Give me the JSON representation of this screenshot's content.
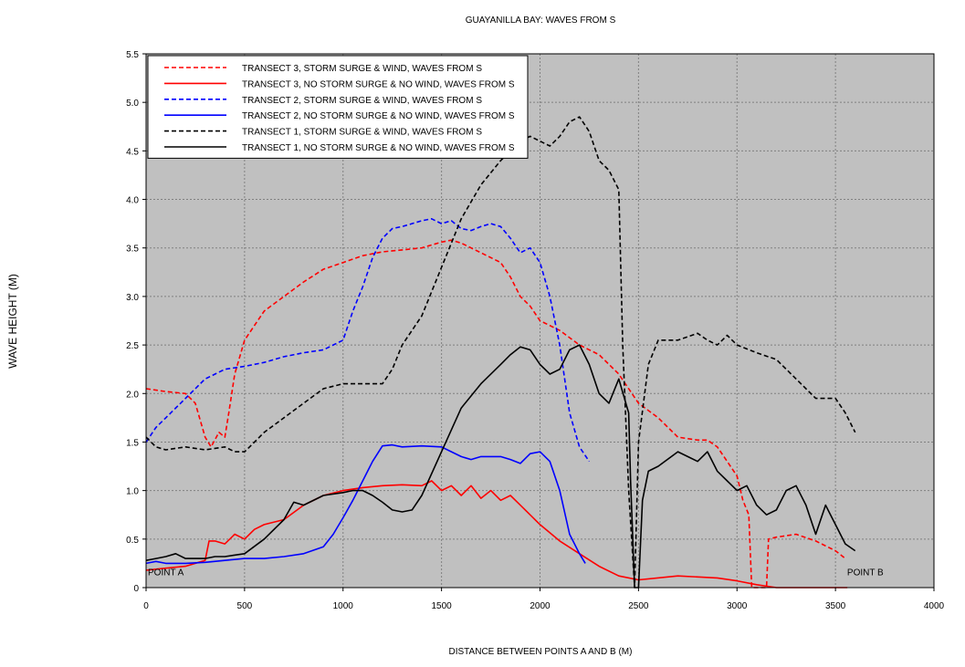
{
  "chart_data": {
    "type": "line",
    "title": "GUAYANILLA BAY: WAVES FROM S",
    "xlabel": "DISTANCE BETWEEN POINTS A AND B (M)",
    "ylabel": "WAVE HEIGHT (M)",
    "xlim": [
      0,
      4000
    ],
    "ylim": [
      0,
      5.5
    ],
    "xticks": [
      "0",
      "500",
      "1000",
      "1500",
      "2000",
      "2500",
      "3000",
      "3500",
      "4000"
    ],
    "yticks": [
      "0",
      "0.5",
      "1.0",
      "1.5",
      "2.0",
      "2.5",
      "3.0",
      "3.5",
      "4.0",
      "4.5",
      "5.0",
      "5.5"
    ],
    "grid": true,
    "legend_position": "top-left",
    "annotations": [
      {
        "text": "POINT A",
        "x": 0,
        "y": 0.1
      },
      {
        "text": "POINT B",
        "x": 3550,
        "y": 0.1
      }
    ],
    "colors": {
      "plot_background": "#c0c0c0",
      "grid": "#808080"
    },
    "series": [
      {
        "name": "TRANSECT 3, STORM SURGE & WIND, WAVES FROM S",
        "color": "#ff0000",
        "dash": true,
        "x": [
          0,
          100,
          200,
          250,
          300,
          330,
          370,
          400,
          420,
          450,
          500,
          600,
          700,
          800,
          900,
          1000,
          1100,
          1200,
          1300,
          1400,
          1500,
          1550,
          1600,
          1650,
          1700,
          1800,
          1850,
          1900,
          1950,
          2000,
          2100,
          2200,
          2300,
          2400,
          2500,
          2600,
          2700,
          2800,
          2850,
          2900,
          2950,
          3000,
          3030,
          3060,
          3075,
          3080,
          3150,
          3160,
          3200,
          3300,
          3400,
          3500,
          3550
        ],
        "y": [
          2.05,
          2.02,
          2.0,
          1.9,
          1.55,
          1.45,
          1.6,
          1.55,
          1.8,
          2.2,
          2.55,
          2.85,
          3.0,
          3.15,
          3.28,
          3.35,
          3.42,
          3.46,
          3.48,
          3.5,
          3.56,
          3.58,
          3.55,
          3.5,
          3.45,
          3.35,
          3.2,
          3.0,
          2.9,
          2.75,
          2.65,
          2.5,
          2.4,
          2.2,
          1.9,
          1.75,
          1.55,
          1.52,
          1.52,
          1.45,
          1.3,
          1.15,
          0.9,
          0.75,
          0.0,
          0.0,
          0.0,
          0.5,
          0.52,
          0.55,
          0.48,
          0.38,
          0.3
        ]
      },
      {
        "name": "TRANSECT 3, NO STORM SURGE & NO WIND, WAVES FROM S",
        "color": "#ff0000",
        "dash": false,
        "x": [
          0,
          100,
          200,
          300,
          320,
          350,
          400,
          450,
          500,
          550,
          600,
          700,
          800,
          900,
          1000,
          1100,
          1200,
          1300,
          1400,
          1450,
          1500,
          1550,
          1600,
          1650,
          1700,
          1750,
          1800,
          1850,
          1900,
          2000,
          2100,
          2200,
          2300,
          2400,
          2500,
          2700,
          2900,
          3000,
          3100,
          3200,
          3300,
          3400,
          3500,
          3560
        ],
        "y": [
          0.18,
          0.2,
          0.22,
          0.28,
          0.48,
          0.48,
          0.45,
          0.55,
          0.5,
          0.6,
          0.65,
          0.7,
          0.85,
          0.95,
          1.0,
          1.03,
          1.05,
          1.06,
          1.05,
          1.1,
          1.0,
          1.05,
          0.95,
          1.05,
          0.92,
          1.0,
          0.9,
          0.95,
          0.85,
          0.65,
          0.48,
          0.35,
          0.22,
          0.12,
          0.08,
          0.12,
          0.1,
          0.07,
          0.03,
          0.0,
          0.0,
          0.0,
          0.0,
          0.0
        ]
      },
      {
        "name": "TRANSECT 2, STORM SURGE & WIND, WAVES FROM S",
        "color": "#0000ff",
        "dash": true,
        "x": [
          0,
          50,
          100,
          200,
          300,
          400,
          500,
          600,
          700,
          800,
          900,
          1000,
          1050,
          1100,
          1150,
          1200,
          1250,
          1300,
          1400,
          1450,
          1500,
          1550,
          1600,
          1650,
          1700,
          1750,
          1800,
          1850,
          1900,
          1950,
          2000,
          2050,
          2100,
          2150,
          2200,
          2250
        ],
        "y": [
          1.5,
          1.65,
          1.75,
          1.95,
          2.15,
          2.25,
          2.28,
          2.32,
          2.38,
          2.42,
          2.45,
          2.55,
          2.85,
          3.1,
          3.4,
          3.6,
          3.7,
          3.72,
          3.78,
          3.8,
          3.75,
          3.78,
          3.7,
          3.68,
          3.72,
          3.75,
          3.72,
          3.6,
          3.45,
          3.5,
          3.35,
          3.0,
          2.5,
          1.8,
          1.45,
          1.3
        ]
      },
      {
        "name": "TRANSECT 2, NO STORM SURGE & NO WIND, WAVES FROM S",
        "color": "#0000ff",
        "dash": false,
        "x": [
          0,
          50,
          100,
          200,
          300,
          400,
          500,
          600,
          700,
          800,
          900,
          950,
          1000,
          1050,
          1100,
          1150,
          1200,
          1250,
          1300,
          1400,
          1500,
          1550,
          1600,
          1650,
          1700,
          1800,
          1850,
          1900,
          1950,
          2000,
          2050,
          2100,
          2150,
          2200,
          2230
        ],
        "y": [
          0.25,
          0.27,
          0.25,
          0.25,
          0.26,
          0.28,
          0.3,
          0.3,
          0.32,
          0.35,
          0.42,
          0.55,
          0.72,
          0.9,
          1.1,
          1.3,
          1.46,
          1.47,
          1.45,
          1.46,
          1.45,
          1.4,
          1.35,
          1.32,
          1.35,
          1.35,
          1.32,
          1.28,
          1.38,
          1.4,
          1.3,
          1.0,
          0.55,
          0.35,
          0.25
        ]
      },
      {
        "name": "TRANSECT 1, STORM SURGE & WIND, WAVES FROM S",
        "color": "#000000",
        "dash": true,
        "x": [
          0,
          50,
          100,
          200,
          300,
          400,
          450,
          500,
          550,
          600,
          700,
          800,
          900,
          1000,
          1100,
          1200,
          1250,
          1300,
          1400,
          1500,
          1600,
          1700,
          1800,
          1850,
          1900,
          1950,
          2000,
          2050,
          2100,
          2150,
          2200,
          2250,
          2300,
          2350,
          2400,
          2420,
          2450,
          2480,
          2500,
          2550,
          2600,
          2700,
          2800,
          2850,
          2900,
          2950,
          3000,
          3100,
          3200,
          3300,
          3400,
          3450,
          3500,
          3550,
          3600
        ],
        "y": [
          1.55,
          1.45,
          1.42,
          1.45,
          1.42,
          1.45,
          1.4,
          1.4,
          1.5,
          1.6,
          1.75,
          1.9,
          2.05,
          2.1,
          2.1,
          2.1,
          2.25,
          2.5,
          2.8,
          3.3,
          3.8,
          4.15,
          4.4,
          4.5,
          4.6,
          4.65,
          4.6,
          4.55,
          4.65,
          4.8,
          4.85,
          4.7,
          4.4,
          4.3,
          4.1,
          2.5,
          1.0,
          0.0,
          1.5,
          2.3,
          2.55,
          2.55,
          2.62,
          2.55,
          2.5,
          2.6,
          2.5,
          2.42,
          2.35,
          2.15,
          1.95,
          1.95,
          1.95,
          1.8,
          1.6
        ]
      },
      {
        "name": "TRANSECT 1, NO STORM SURGE & NO WIND, WAVES FROM S",
        "color": "#000000",
        "dash": false,
        "x": [
          0,
          50,
          100,
          150,
          200,
          250,
          300,
          350,
          400,
          500,
          600,
          700,
          750,
          800,
          900,
          1000,
          1050,
          1100,
          1150,
          1200,
          1250,
          1300,
          1350,
          1400,
          1500,
          1600,
          1700,
          1800,
          1850,
          1900,
          1950,
          2000,
          2050,
          2100,
          2150,
          2200,
          2250,
          2300,
          2350,
          2400,
          2450,
          2460,
          2480,
          2500,
          2520,
          2550,
          2600,
          2700,
          2750,
          2800,
          2850,
          2900,
          2950,
          3000,
          3050,
          3100,
          3150,
          3200,
          3250,
          3300,
          3350,
          3400,
          3450,
          3500,
          3550,
          3600
        ],
        "y": [
          0.28,
          0.3,
          0.32,
          0.35,
          0.3,
          0.3,
          0.3,
          0.32,
          0.32,
          0.35,
          0.5,
          0.7,
          0.88,
          0.85,
          0.95,
          0.98,
          1.0,
          1.0,
          0.95,
          0.88,
          0.8,
          0.78,
          0.8,
          0.95,
          1.4,
          1.85,
          2.1,
          2.3,
          2.4,
          2.48,
          2.45,
          2.3,
          2.2,
          2.25,
          2.45,
          2.5,
          2.3,
          2.0,
          1.9,
          2.15,
          1.8,
          1.1,
          0.0,
          0.0,
          0.9,
          1.2,
          1.25,
          1.4,
          1.35,
          1.3,
          1.4,
          1.2,
          1.1,
          1.0,
          1.05,
          0.85,
          0.75,
          0.8,
          1.0,
          1.05,
          0.85,
          0.55,
          0.85,
          0.65,
          0.45,
          0.38
        ]
      }
    ]
  }
}
